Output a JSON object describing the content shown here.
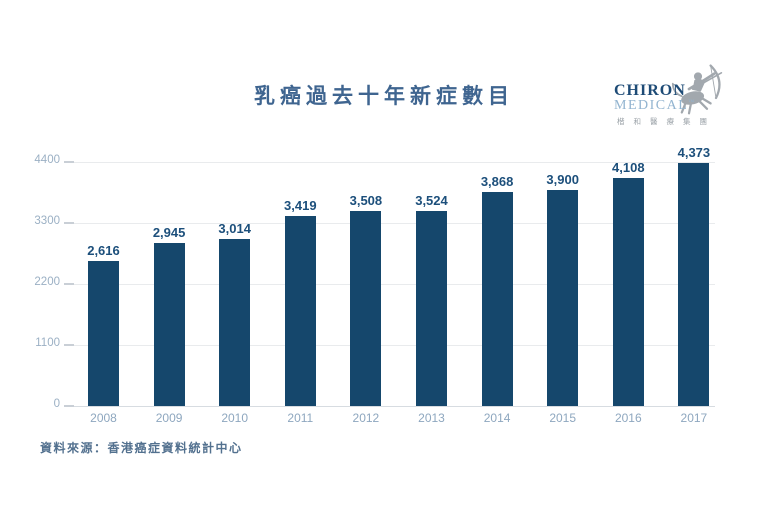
{
  "title": "乳癌過去十年新症數目",
  "logo": {
    "name_line1": "CHIRON",
    "name_line2": "MEDICAL",
    "trademark": "™",
    "chinese_name": "楷和醫療集團"
  },
  "footer": {
    "source_text": "資料來源：香港癌症資料統計中心"
  },
  "colors": {
    "bar": "#15476C",
    "value_label": "#1C4F7B",
    "title": "#3F6590",
    "y_axis_label": "#9BB0C4",
    "x_axis_label": "#8EA7BF",
    "gridline": "#E9EBED",
    "tick": "#C9CFD6",
    "baseline": "#D7DCE1",
    "footer_text": "#53718F",
    "logo_navy": "#1E4B76",
    "logo_light_blue": "#92B4D0",
    "logo_gray": "#A2A8AE"
  },
  "chart_data": {
    "type": "bar",
    "title": "乳癌過去十年新症數目",
    "categories": [
      "2008",
      "2009",
      "2010",
      "2011",
      "2012",
      "2013",
      "2014",
      "2015",
      "2016",
      "2017"
    ],
    "values": [
      2616,
      2945,
      3014,
      3419,
      3508,
      3524,
      3868,
      3900,
      4108,
      4373
    ],
    "value_labels": [
      "2,616",
      "2,945",
      "3,014",
      "3,419",
      "3,508",
      "3,524",
      "3,868",
      "3,900",
      "4,108",
      "4,373"
    ],
    "yticks": [
      0,
      1100,
      2200,
      3300,
      4400
    ],
    "ylim": [
      0,
      4400
    ],
    "grid": true,
    "legend": "none",
    "xlabel": "",
    "ylabel": "",
    "bar_color": "#15476C"
  }
}
